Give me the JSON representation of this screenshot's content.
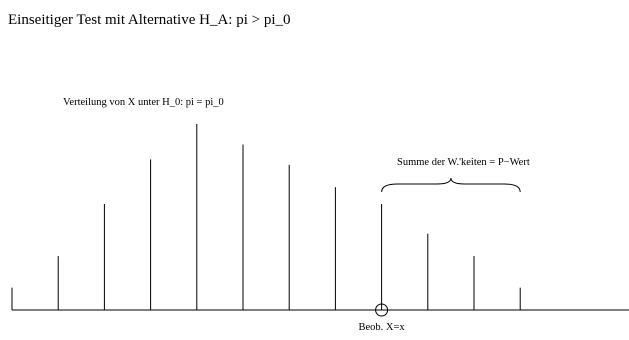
{
  "title": "Einseitiger Test mit Alternative H_A: pi > pi_0",
  "distribution_label": "Verteilung von X unter H_0: pi = pi_0",
  "sum_label": "Summe der W.'keiten = P−Wert",
  "observation_label": "Beob. X=x",
  "chart_data": {
    "type": "bar",
    "title": "Einseitiger Test mit Alternative H_A: pi > pi_0",
    "xlabel": "",
    "ylabel": "",
    "x": [
      0,
      1,
      2,
      3,
      4,
      5,
      6,
      7,
      8,
      9,
      10,
      11
    ],
    "values": [
      0.12,
      0.29,
      0.57,
      0.81,
      1.0,
      0.89,
      0.78,
      0.66,
      0.57,
      0.41,
      0.29,
      0.12
    ],
    "observed_index": 8,
    "brace_from_index": 8,
    "brace_to_index": 11,
    "ylim": [
      0,
      1
    ],
    "grid": false
  }
}
